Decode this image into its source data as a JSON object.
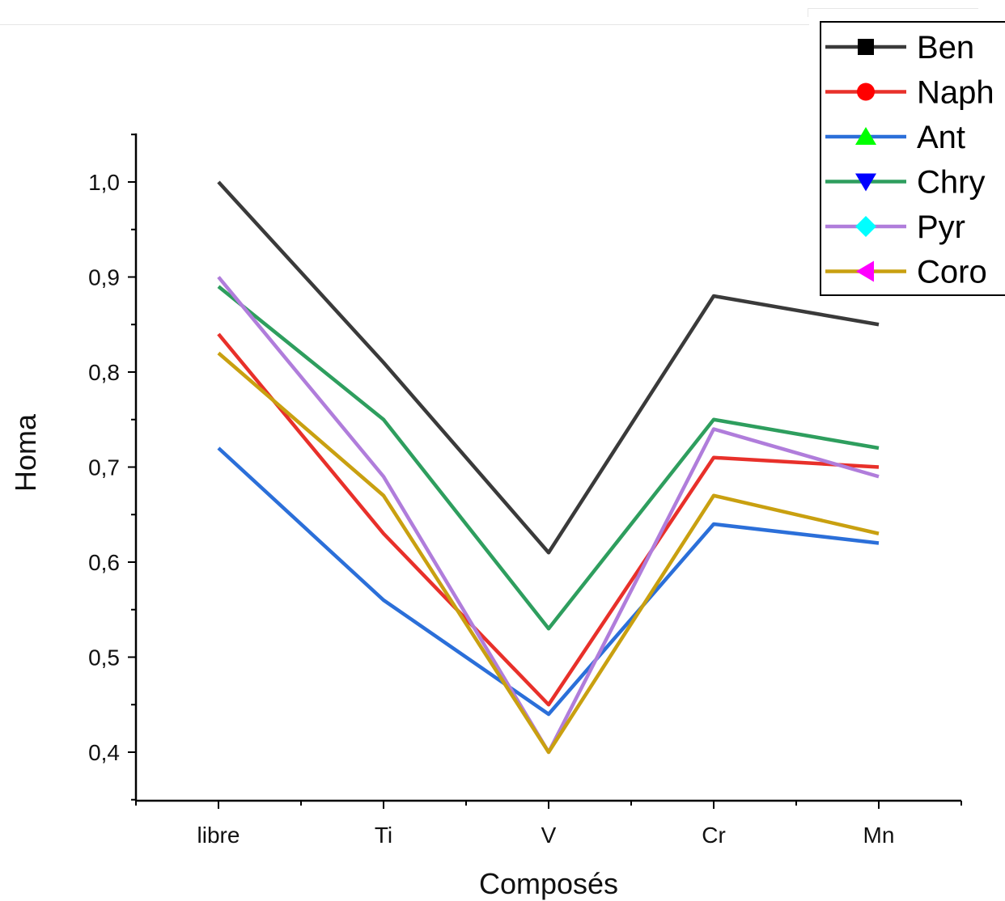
{
  "chart_data": {
    "type": "line",
    "title": "",
    "xlabel": "Composés",
    "ylabel": "Homa",
    "categories": [
      "libre",
      "Ti",
      "V",
      "Cr",
      "Mn"
    ],
    "ylim": [
      0.35,
      1.05
    ],
    "yticks": [
      {
        "value": 0.4,
        "label": "0,4"
      },
      {
        "value": 0.5,
        "label": "0,5"
      },
      {
        "value": 0.6,
        "label": "0,6"
      },
      {
        "value": 0.7,
        "label": "0,7"
      },
      {
        "value": 0.8,
        "label": "0,8"
      },
      {
        "value": 0.9,
        "label": "0,9"
      },
      {
        "value": 1.0,
        "label": "1,0"
      }
    ],
    "grid": false,
    "legend_position": "top-right",
    "series": [
      {
        "name": "Ben",
        "color": "#3a3a3a",
        "marker": "square",
        "marker_color": "#000000",
        "values": [
          1.0,
          0.81,
          0.61,
          0.88,
          0.85
        ]
      },
      {
        "name": "Naph",
        "color": "#e8302a",
        "marker": "circle",
        "marker_color": "#ff0000",
        "values": [
          0.84,
          0.63,
          0.45,
          0.71,
          0.7
        ]
      },
      {
        "name": "Ant",
        "color": "#2b6fd9",
        "marker": "triangle-up",
        "marker_color": "#00ff00",
        "values": [
          0.72,
          0.56,
          0.44,
          0.64,
          0.62
        ]
      },
      {
        "name": "Chry",
        "color": "#2e9e5e",
        "marker": "triangle-down",
        "marker_color": "#0000ff",
        "values": [
          0.89,
          0.75,
          0.53,
          0.75,
          0.72
        ]
      },
      {
        "name": "Pyr",
        "color": "#b07ddb",
        "marker": "diamond",
        "marker_color": "#00ffff",
        "values": [
          0.9,
          0.69,
          0.4,
          0.74,
          0.69
        ]
      },
      {
        "name": "Coro",
        "color": "#c9a010",
        "marker": "triangle-left",
        "marker_color": "#ff00ff",
        "values": [
          0.82,
          0.67,
          0.4,
          0.67,
          0.63
        ]
      }
    ]
  }
}
